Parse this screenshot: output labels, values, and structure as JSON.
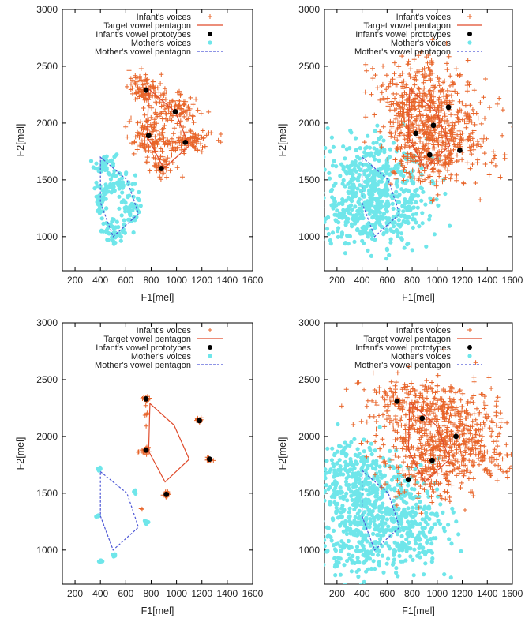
{
  "chart_data": [
    {
      "type": "scatter",
      "xlabel": "F1[mel]",
      "ylabel": "F2[mel]",
      "xlim": [
        100,
        1600
      ],
      "ylim": [
        700,
        3000
      ],
      "xticks": [
        200,
        400,
        600,
        800,
        1000,
        1200,
        1400,
        1600
      ],
      "yticks": [
        1000,
        1500,
        2000,
        2500,
        3000
      ],
      "legend": [
        "Infant's voices",
        "Target vowel pentagon",
        "Infant's vowel prototypes",
        "Mother's voices",
        "Mother's vowel pentagon"
      ],
      "target_pentagon": [
        [
          780,
          2300
        ],
        [
          990,
          2100
        ],
        [
          1100,
          1800
        ],
        [
          900,
          1600
        ],
        [
          770,
          1880
        ]
      ],
      "mother_pentagon": [
        [
          400,
          1700
        ],
        [
          610,
          1500
        ],
        [
          700,
          1200
        ],
        [
          500,
          1000
        ],
        [
          400,
          1300
        ]
      ],
      "prototypes": [
        [
          760,
          2290
        ],
        [
          990,
          2100
        ],
        [
          1070,
          1830
        ],
        [
          880,
          1600
        ],
        [
          780,
          1890
        ]
      ],
      "infant_clusters": [
        {
          "center": [
            760,
            2300
          ],
          "spread": [
            70,
            60
          ],
          "n": 110
        },
        {
          "center": [
            990,
            2100
          ],
          "spread": [
            95,
            70
          ],
          "n": 100
        },
        {
          "center": [
            1080,
            1840
          ],
          "spread": [
            100,
            55
          ],
          "n": 100
        },
        {
          "center": [
            870,
            1640
          ],
          "spread": [
            60,
            55
          ],
          "n": 45
        },
        {
          "center": [
            790,
            1880
          ],
          "spread": [
            90,
            90
          ],
          "n": 110
        }
      ],
      "mother_clusters": [
        {
          "center": [
            440,
            1630
          ],
          "spread": [
            45,
            60
          ],
          "n": 50
        },
        {
          "center": [
            560,
            1450
          ],
          "spread": [
            55,
            70
          ],
          "n": 50
        },
        {
          "center": [
            640,
            1220
          ],
          "spread": [
            45,
            60
          ],
          "n": 40
        },
        {
          "center": [
            500,
            1050
          ],
          "spread": [
            45,
            45
          ],
          "n": 45
        },
        {
          "center": [
            410,
            1320
          ],
          "spread": [
            30,
            70
          ],
          "n": 45
        }
      ]
    },
    {
      "type": "scatter",
      "xlabel": "F1[mel]",
      "ylabel": "F2[mel]",
      "xlim": [
        100,
        1600
      ],
      "ylim": [
        700,
        3000
      ],
      "xticks": [
        200,
        400,
        600,
        800,
        1000,
        1200,
        1400,
        1600
      ],
      "yticks": [
        1000,
        1500,
        2000,
        2500,
        3000
      ],
      "legend": [
        "Infant's voices",
        "Target vowel pentagon",
        "Infant's vowel prototypes",
        "Mother's voices",
        "Mother's vowel pentagon"
      ],
      "target_pentagon": [
        [
          780,
          2300
        ],
        [
          990,
          2100
        ],
        [
          1100,
          1800
        ],
        [
          900,
          1600
        ],
        [
          770,
          1880
        ]
      ],
      "mother_pentagon": [
        [
          400,
          1700
        ],
        [
          610,
          1500
        ],
        [
          700,
          1200
        ],
        [
          500,
          1000
        ],
        [
          400,
          1300
        ]
      ],
      "prototypes": [
        [
          1090,
          2140
        ],
        [
          970,
          1980
        ],
        [
          830,
          1910
        ],
        [
          1180,
          1760
        ],
        [
          940,
          1720
        ]
      ],
      "infant_clusters": [
        {
          "center": [
            820,
            2300
          ],
          "spread": [
            160,
            160
          ],
          "n": 180
        },
        {
          "center": [
            1030,
            2100
          ],
          "spread": [
            170,
            170
          ],
          "n": 180
        },
        {
          "center": [
            1150,
            1800
          ],
          "spread": [
            170,
            160
          ],
          "n": 160
        },
        {
          "center": [
            900,
            1650
          ],
          "spread": [
            140,
            140
          ],
          "n": 110
        },
        {
          "center": [
            820,
            1920
          ],
          "spread": [
            150,
            160
          ],
          "n": 150
        }
      ],
      "mother_clusters": [
        {
          "center": [
            430,
            1580
          ],
          "spread": [
            160,
            170
          ],
          "n": 180
        },
        {
          "center": [
            620,
            1400
          ],
          "spread": [
            180,
            180
          ],
          "n": 180
        },
        {
          "center": [
            560,
            1150
          ],
          "spread": [
            180,
            150
          ],
          "n": 160
        },
        {
          "center": [
            300,
            1250
          ],
          "spread": [
            140,
            180
          ],
          "n": 130
        }
      ]
    },
    {
      "type": "scatter",
      "xlabel": "F1[mel]",
      "ylabel": "F2[mel]",
      "xlim": [
        100,
        1600
      ],
      "ylim": [
        700,
        3000
      ],
      "xticks": [
        200,
        400,
        600,
        800,
        1000,
        1200,
        1400,
        1600
      ],
      "yticks": [
        1000,
        1500,
        2000,
        2500,
        3000
      ],
      "legend": [
        "Infant's voices",
        "Target vowel pentagon",
        "Infant's vowel prototypes",
        "Mother's voices",
        "Mother's vowel pentagon"
      ],
      "target_pentagon": [
        [
          790,
          2290
        ],
        [
          980,
          2100
        ],
        [
          1100,
          1800
        ],
        [
          910,
          1600
        ],
        [
          780,
          1870
        ]
      ],
      "mother_pentagon": [
        [
          400,
          1690
        ],
        [
          610,
          1500
        ],
        [
          700,
          1200
        ],
        [
          500,
          1000
        ],
        [
          400,
          1300
        ]
      ],
      "prototypes": [
        [
          760,
          2330
        ],
        [
          1180,
          2140
        ],
        [
          760,
          1880
        ],
        [
          1260,
          1800
        ],
        [
          920,
          1490
        ]
      ],
      "infant_clusters": [
        {
          "center": [
            760,
            2330
          ],
          "spread": [
            12,
            12
          ],
          "n": 22
        },
        {
          "center": [
            1180,
            2140
          ],
          "spread": [
            12,
            12
          ],
          "n": 18
        },
        {
          "center": [
            760,
            1880
          ],
          "spread": [
            12,
            12
          ],
          "n": 20
        },
        {
          "center": [
            1260,
            1800
          ],
          "spread": [
            12,
            12
          ],
          "n": 18
        },
        {
          "center": [
            920,
            1490
          ],
          "spread": [
            12,
            12
          ],
          "n": 18
        },
        {
          "center": [
            760,
            2200
          ],
          "spread": [
            6,
            50
          ],
          "n": 5
        },
        {
          "center": [
            720,
            1860
          ],
          "spread": [
            20,
            10
          ],
          "n": 4
        },
        {
          "center": [
            720,
            1350
          ],
          "spread": [
            10,
            10
          ],
          "n": 2
        }
      ],
      "mother_clusters": [
        {
          "center": [
            390,
            1710
          ],
          "spread": [
            8,
            8
          ],
          "n": 8
        },
        {
          "center": [
            380,
            1300
          ],
          "spread": [
            8,
            8
          ],
          "n": 7
        },
        {
          "center": [
            510,
            960
          ],
          "spread": [
            8,
            8
          ],
          "n": 8
        },
        {
          "center": [
            760,
            1250
          ],
          "spread": [
            8,
            8
          ],
          "n": 6
        },
        {
          "center": [
            680,
            1510
          ],
          "spread": [
            8,
            8
          ],
          "n": 5
        },
        {
          "center": [
            400,
            900
          ],
          "spread": [
            10,
            10
          ],
          "n": 5
        }
      ]
    },
    {
      "type": "scatter",
      "xlabel": "F1[mel]",
      "ylabel": "F2[mel]",
      "xlim": [
        100,
        1600
      ],
      "ylim": [
        700,
        3000
      ],
      "xticks": [
        200,
        400,
        600,
        800,
        1000,
        1200,
        1400,
        1600
      ],
      "yticks": [
        1000,
        1500,
        2000,
        2500,
        3000
      ],
      "legend": [
        "Infant's voices",
        "Target vowel pentagon",
        "Infant's vowel prototypes",
        "Mother's voices",
        "Mother's vowel pentagon"
      ],
      "target_pentagon": [
        [
          780,
          2300
        ],
        [
          990,
          2100
        ],
        [
          1100,
          1800
        ],
        [
          900,
          1600
        ],
        [
          770,
          1880
        ]
      ],
      "mother_pentagon": [
        [
          400,
          1700
        ],
        [
          610,
          1500
        ],
        [
          700,
          1200
        ],
        [
          500,
          1000
        ],
        [
          400,
          1300
        ]
      ],
      "prototypes": [
        [
          680,
          2310
        ],
        [
          880,
          2160
        ],
        [
          1150,
          2000
        ],
        [
          960,
          1790
        ],
        [
          770,
          1620
        ]
      ],
      "infant_clusters": [
        {
          "center": [
            800,
            2250
          ],
          "spread": [
            200,
            170
          ],
          "n": 200
        },
        {
          "center": [
            1100,
            2100
          ],
          "spread": [
            200,
            180
          ],
          "n": 200
        },
        {
          "center": [
            1250,
            1850
          ],
          "spread": [
            180,
            170
          ],
          "n": 170
        },
        {
          "center": [
            900,
            1700
          ],
          "spread": [
            170,
            160
          ],
          "n": 140
        },
        {
          "center": [
            1000,
            2000
          ],
          "spread": [
            250,
            230
          ],
          "n": 150
        }
      ],
      "mother_clusters": [
        {
          "center": [
            430,
            1550
          ],
          "spread": [
            200,
            200
          ],
          "n": 220
        },
        {
          "center": [
            600,
            1300
          ],
          "spread": [
            200,
            220
          ],
          "n": 220
        },
        {
          "center": [
            350,
            1100
          ],
          "spread": [
            180,
            200
          ],
          "n": 180
        },
        {
          "center": [
            800,
            1150
          ],
          "spread": [
            160,
            200
          ],
          "n": 140
        },
        {
          "center": [
            250,
            1700
          ],
          "spread": [
            120,
            150
          ],
          "n": 100
        }
      ]
    }
  ]
}
